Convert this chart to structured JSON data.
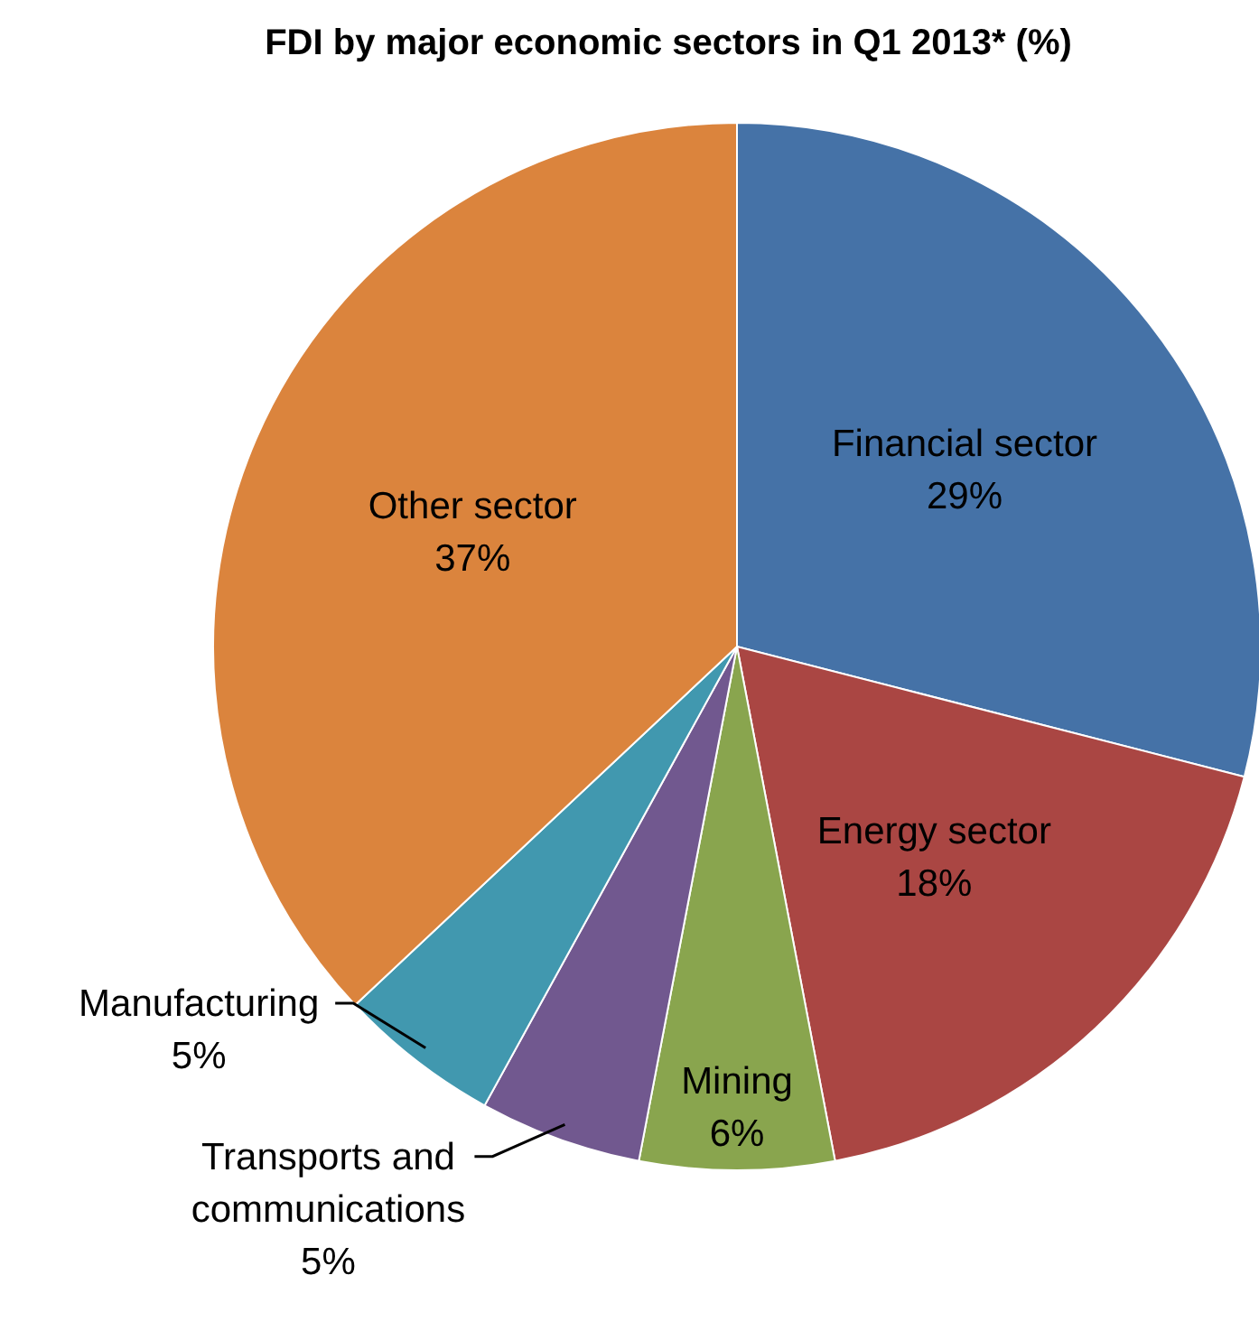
{
  "chart_data": {
    "type": "pie",
    "title": "FDI by major economic sectors in Q1 2013* (%)",
    "categories": [
      "Financial sector",
      "Energy sector",
      "Mining",
      "Transports and communications",
      "Manufacturing",
      "Other sector"
    ],
    "values": [
      29,
      18,
      6,
      5,
      5,
      37
    ],
    "value_labels": [
      "29%",
      "18%",
      "6%",
      "5%",
      "5%",
      "37%"
    ],
    "colors": [
      "#4572a7",
      "#aa4643",
      "#89a54e",
      "#71588f",
      "#4198af",
      "#db843d"
    ]
  }
}
